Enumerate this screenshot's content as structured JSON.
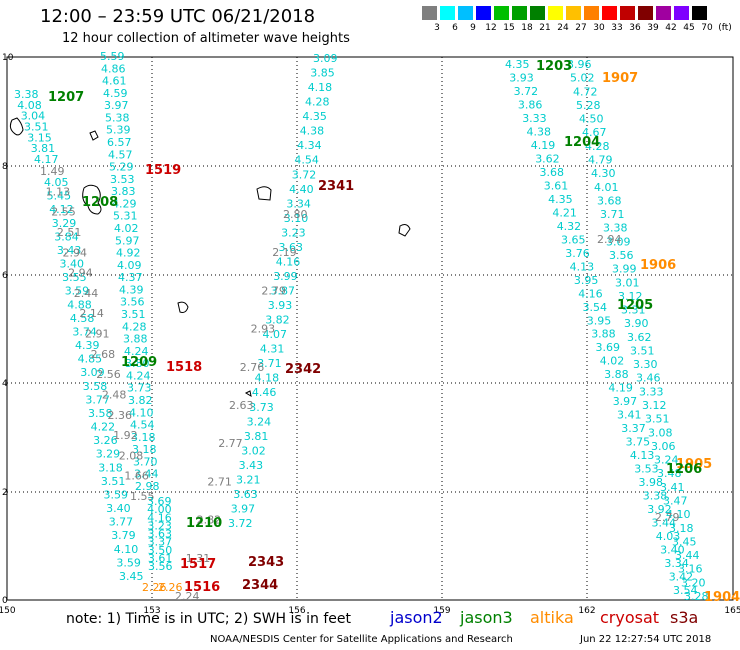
{
  "header": {
    "title": "12:00 – 23:59 UTC 06/21/2018",
    "subtitle": "12 hour collection of altimeter wave heights"
  },
  "colorbar": {
    "colors": [
      "#7f7f7f",
      "#00ffff",
      "#00bfff",
      "#0000ff",
      "#00bf00",
      "#00a000",
      "#008000",
      "#ffff00",
      "#ffc000",
      "#ff8000",
      "#ff0000",
      "#c00000",
      "#800000",
      "#a000a0",
      "#7f00ff",
      "#000000"
    ],
    "labels": [
      "3",
      "6",
      "9",
      "12",
      "15",
      "18",
      "21",
      "24",
      "27",
      "30",
      "33",
      "36",
      "39",
      "42",
      "45",
      "70",
      "(ft)"
    ]
  },
  "axes": {
    "x_ticks": [
      "150",
      "153",
      "156",
      "159",
      "162",
      "165"
    ],
    "y_ticks": [
      "0",
      "2",
      "4",
      "6",
      "8",
      "10"
    ]
  },
  "passes": [
    {
      "id": "1207",
      "color": "#008000"
    },
    {
      "id": "1519",
      "color": "#cc0000"
    },
    {
      "id": "1208",
      "color": "#008000"
    },
    {
      "id": "2341",
      "color": "#800000"
    },
    {
      "id": "1209",
      "color": "#008000"
    },
    {
      "id": "1518",
      "color": "#cc0000"
    },
    {
      "id": "2342",
      "color": "#800000"
    },
    {
      "id": "1210",
      "color": "#008000"
    },
    {
      "id": "1517",
      "color": "#cc0000"
    },
    {
      "id": "2343",
      "color": "#800000"
    },
    {
      "id": "1516",
      "color": "#cc0000"
    },
    {
      "id": "2344",
      "color": "#800000"
    },
    {
      "id": "1203",
      "color": "#008000"
    },
    {
      "id": "1907",
      "color": "#ff8c00"
    },
    {
      "id": "1204",
      "color": "#008000"
    },
    {
      "id": "1906",
      "color": "#ff8c00"
    },
    {
      "id": "1205",
      "color": "#008000"
    },
    {
      "id": "1905",
      "color": "#ff8c00"
    },
    {
      "id": "1206",
      "color": "#008000"
    },
    {
      "id": "1904",
      "color": "#ff8c00"
    }
  ],
  "tracks": [
    {
      "color": "#00cccc",
      "values": [
        "3.38",
        "4.08",
        "3.04",
        "3.51",
        "3.15",
        "3.81",
        "4.17"
      ]
    },
    {
      "color": "#00cccc",
      "values": [
        "5.59",
        "4.86",
        "4.61",
        "4.59",
        "3.97",
        "5.38",
        "5.39",
        "6.57",
        "4.57",
        "5.29",
        "3.53",
        "3.83",
        "4.29",
        "5.31",
        "4.02",
        "5.97",
        "4.92",
        "4.09",
        "4.37",
        "4.39",
        "3.56",
        "3.51",
        "4.28",
        "3.88",
        "4.24",
        "3.80",
        "4.24",
        "3.73",
        "3.82",
        "4.10",
        "4.54",
        "3.18",
        "3.18",
        "3.70",
        "3.44",
        "2.98"
      ]
    },
    {
      "color": "#00cccc",
      "values": [
        "4.05",
        "5.45",
        "4.12",
        "3.29",
        "3.84",
        "3.43",
        "3.40",
        "3.55",
        "3.59",
        "4.88",
        "4.58",
        "3.74",
        "4.39",
        "4.85",
        "3.09",
        "3.58",
        "3.77",
        "3.58",
        "4.22",
        "3.26",
        "3.29",
        "3.18",
        "3.51",
        "3.59",
        "3.40",
        "3.77",
        "3.79",
        "4.10",
        "3.59",
        "3.45"
      ]
    },
    {
      "color": "#7f7f7f",
      "values": [
        "1.49",
        "1.13",
        "2.55",
        "2.51",
        "2.94",
        "2.94",
        "2.44",
        "2.14",
        "2.91",
        "2.68",
        "2.56",
        "2.48",
        "2.36",
        "1.92",
        "2.08",
        "1.66",
        "1.55"
      ]
    },
    {
      "color": "#00cccc",
      "values": [
        "3.69",
        "4.00",
        "4.16",
        "3.23",
        "3.63",
        "3.37",
        "3.50",
        "3.61",
        "3.56"
      ]
    },
    {
      "color": "#00cccc",
      "values": [
        "3.09",
        "3.85",
        "4.18",
        "4.28",
        "4.35",
        "4.38",
        "4.34",
        "4.54",
        "3.72",
        "4.40",
        "3.34",
        "3.10",
        "3.23",
        "3.63",
        "4.16",
        "3.99",
        "3.87",
        "3.93",
        "3.82",
        "4.07",
        "4.31",
        "3.71",
        "4.18",
        "4.46",
        "3.73",
        "3.24",
        "3.81",
        "3.02",
        "3.43",
        "3.21",
        "3.63",
        "3.97",
        "3.72"
      ]
    },
    {
      "color": "#7f7f7f",
      "values": [
        "2.80",
        "2.19",
        "2.79",
        "2.93",
        "2.76",
        "2.63",
        "2.77",
        "2.71",
        "2.82",
        "1.31",
        "2.24"
      ]
    },
    {
      "color": "#ff8c00",
      "values": [
        "2.26",
        "2.26"
      ]
    },
    {
      "color": "#00cccc",
      "values": [
        "4.35",
        "3.93",
        "3.72",
        "3.86",
        "3.33",
        "4.38",
        "4.19",
        "3.62",
        "3.68",
        "3.61",
        "4.35",
        "4.21",
        "4.32",
        "3.65",
        "3.76",
        "4.13",
        "3.95",
        "4.16",
        "3.54",
        "3.95",
        "3.88",
        "3.69",
        "4.02",
        "3.88",
        "4.19",
        "3.97",
        "3.41",
        "3.37",
        "3.75",
        "4.13",
        "3.53",
        "3.98",
        "3.38",
        "3.92",
        "3.44",
        "4.03",
        "3.40",
        "3.34",
        "3.42",
        "3.54"
      ]
    },
    {
      "color": "#00cccc",
      "values": [
        "3.96",
        "5.02",
        "4.72",
        "5.28",
        "4.50",
        "4.67",
        "4.28",
        "4.79",
        "4.30",
        "4.01",
        "3.68",
        "3.71",
        "3.38",
        "3.09",
        "3.56",
        "3.99",
        "3.01",
        "3.12",
        "3.31",
        "3.90",
        "3.62",
        "3.51",
        "3.30",
        "3.46",
        "3.33",
        "3.12",
        "3.51",
        "3.08",
        "3.06",
        "3.24",
        "3.48",
        "3.41",
        "3.47",
        "4.10",
        "3.18",
        "3.45",
        "3.44",
        "3.16",
        "3.20",
        "3.28"
      ]
    },
    {
      "color": "#7f7f7f",
      "values": [
        "2.94",
        "2.79"
      ]
    }
  ],
  "legend": {
    "note": "note:  1) Time is in UTC;  2) SWH is in feet",
    "satellites": [
      {
        "name": "jason2",
        "color": "#0000cc"
      },
      {
        "name": "jason3",
        "color": "#008000"
      },
      {
        "name": "altika",
        "color": "#ff8c00"
      },
      {
        "name": "cryosat",
        "color": "#cc0000"
      },
      {
        "name": "s3a",
        "color": "#800000"
      }
    ]
  },
  "footer": {
    "credit": "NOAA/NESDIS Center for Satellite Applications and Research",
    "timestamp": "Jun 22 12:27:54 UTC 2018"
  }
}
